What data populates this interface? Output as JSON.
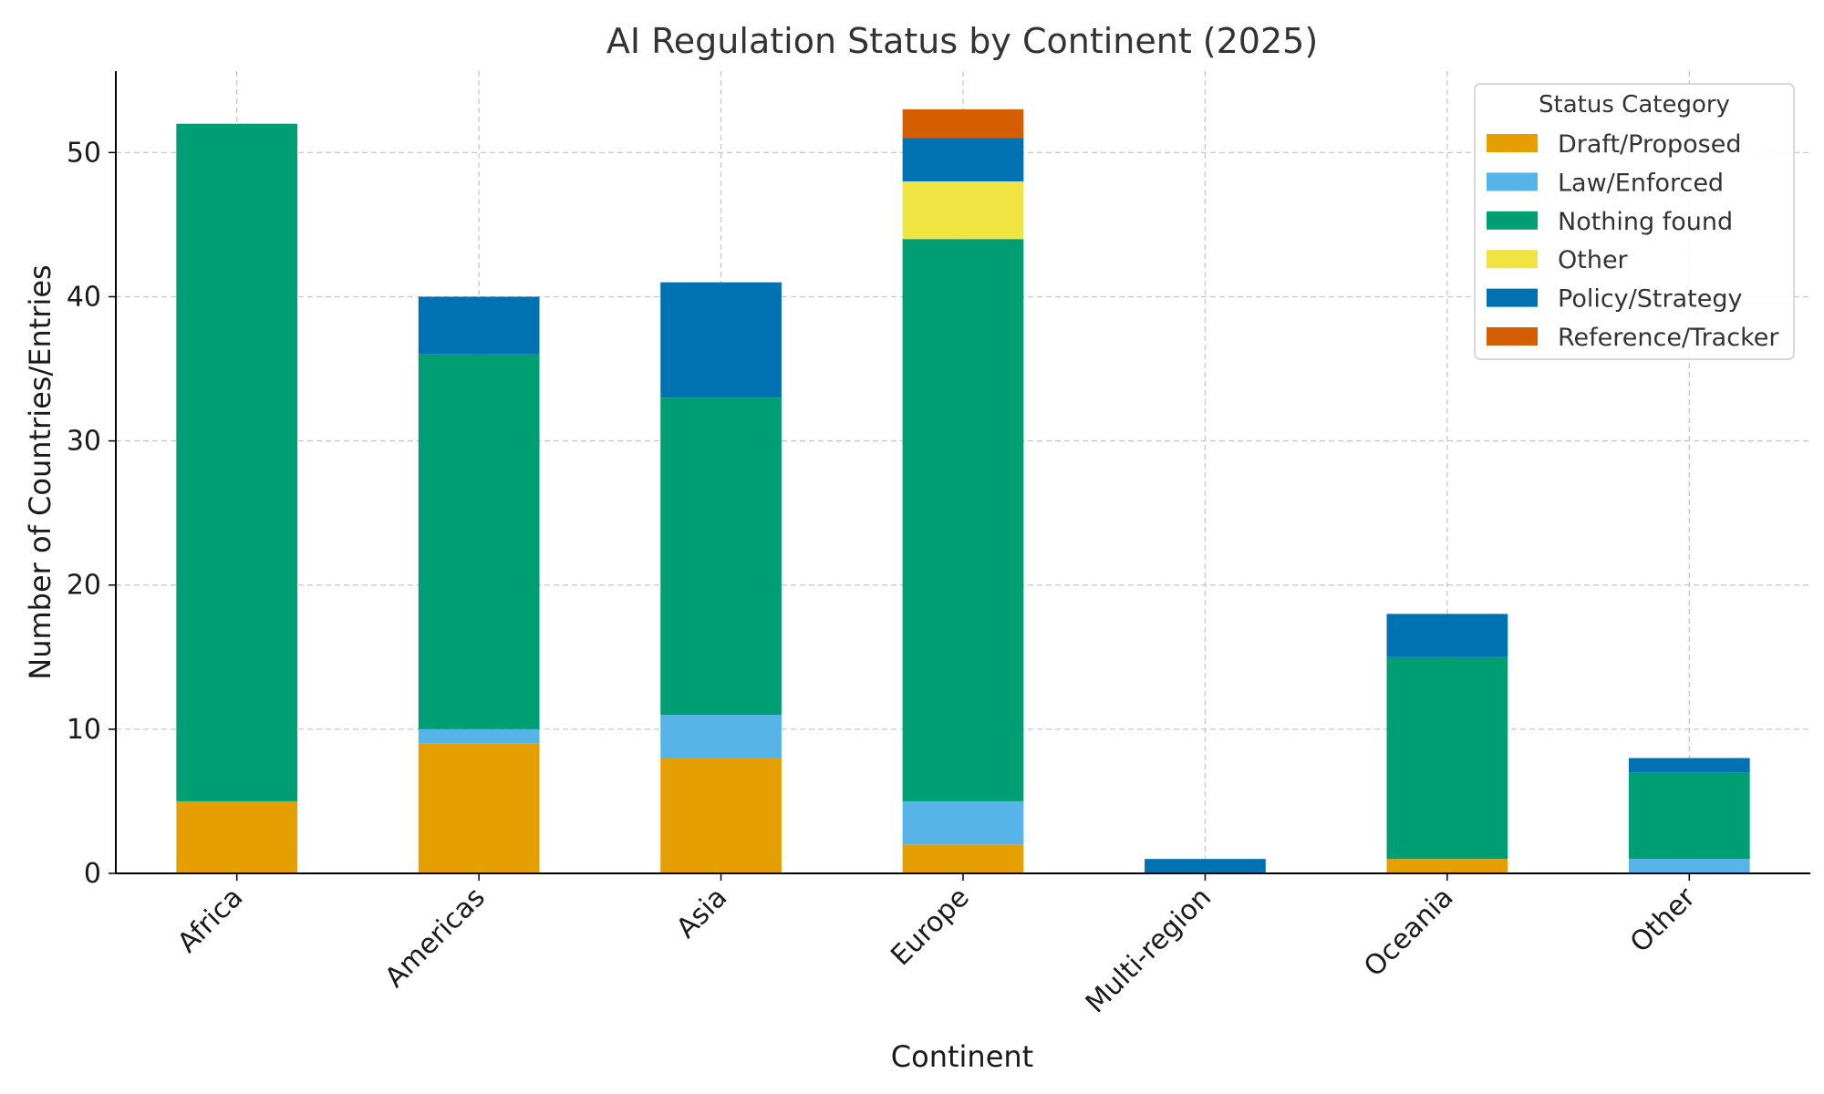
{
  "chart_data": {
    "type": "bar",
    "stacked": true,
    "title": "AI Regulation Status by Continent (2025)",
    "xlabel": "Continent",
    "ylabel": "Number of Countries/Entries",
    "ylim": [
      0,
      55.65
    ],
    "yticks": [
      "0",
      "10",
      "20",
      "30",
      "40",
      "50"
    ],
    "grid": true,
    "legend_position": "top-right",
    "legend_title": "Status Category",
    "categories": [
      "Africa",
      "Americas",
      "Asia",
      "Europe",
      "Multi-region",
      "Oceania",
      "Other"
    ],
    "series": [
      {
        "name": "Draft/Proposed",
        "color": "#E69F00",
        "values": [
          5,
          9,
          8,
          2,
          0,
          1,
          0
        ]
      },
      {
        "name": "Law/Enforced",
        "color": "#56B4E9",
        "values": [
          0,
          1,
          3,
          3,
          0,
          0,
          1
        ]
      },
      {
        "name": "Nothing found",
        "color": "#009E73",
        "values": [
          47,
          26,
          22,
          39,
          0,
          14,
          6
        ]
      },
      {
        "name": "Other",
        "color": "#F0E442",
        "values": [
          0,
          0,
          0,
          4,
          0,
          0,
          0
        ]
      },
      {
        "name": "Policy/Strategy",
        "color": "#0072B2",
        "values": [
          0,
          4,
          8,
          3,
          1,
          3,
          1
        ]
      },
      {
        "name": "Reference/Tracker",
        "color": "#D55E00",
        "values": [
          0,
          0,
          0,
          2,
          0,
          0,
          0
        ]
      }
    ]
  }
}
